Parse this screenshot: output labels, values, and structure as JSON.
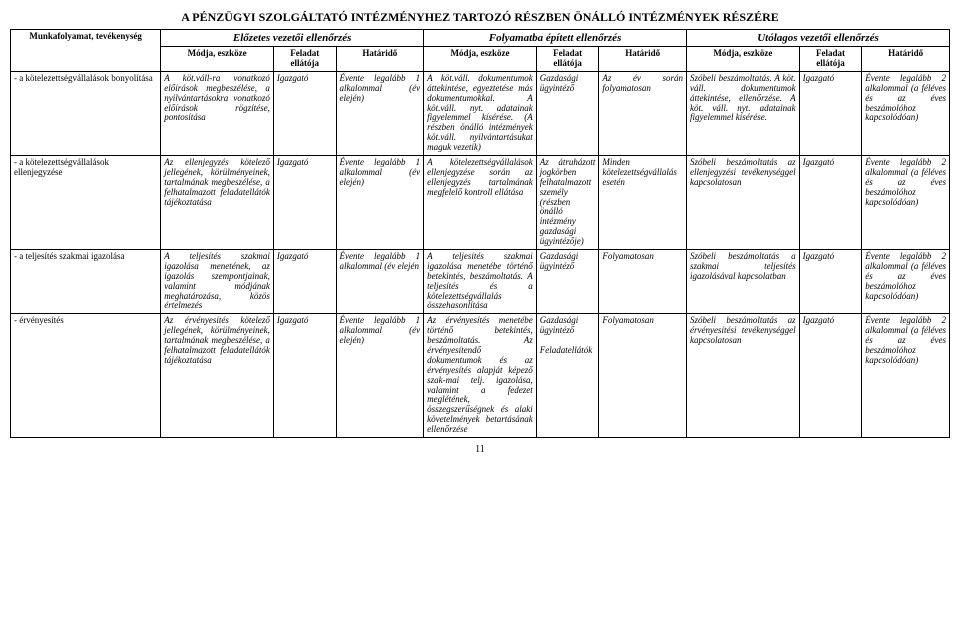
{
  "title": "A PÉNZÜGYI SZOLGÁLTATÓ INTÉZMÉNYHEZ TARTOZÓ RÉSZBEN ÖNÁLLÓ INTÉZMÉNYEK RÉSZÉRE",
  "groupHeaders": {
    "g1": "Előzetes vezetői ellenőrzés",
    "g2": "Folyamatba épített ellenőrzés",
    "g3": "Utólagos vezetői ellenőrzés"
  },
  "colHeaders": {
    "activity": "Munkafolyamat, tevékenység",
    "modja": "Módja, eszköze",
    "feladat": "Feladat ellátója",
    "hatarido": "Határidő"
  },
  "rows": [
    {
      "activity": "- a kötelezettségvállalások bonyolítása",
      "c1m": "A köt.váll-ra vonatkozó előírások megbeszélése, a nyilvántartásokra vonatkozó előírások rögzítése, pontosítása",
      "c1f": "Igazgató",
      "c1h": "Évente legalább 1 alkalommal (év elején)",
      "c2m": "A köt.váll. dokumentumok áttekintése, egyeztetése más dokumentumokkal. A köt.váll. nyt. adatainak figyelemmel kísérése. (A részben önálló intézmények köt.váll. nyilvántartásukat maguk vezetik)",
      "c2f": "Gazdasági ügyintéző",
      "c2h": "Az év során folyamatosan",
      "c3m": "Szóbeli beszámoltatás. A köt. váll. dokumentumok áttekintése, ellenőrzése. A köt. váll. nyt. adatainak figyelemmel kísérése.",
      "c3f": "Igazgató",
      "c3h": "Évente legalább 2 alkalommal (a féléves és az éves beszámolóhoz kapcsolódóan)"
    },
    {
      "activity": "- a kötelezettségvállalások ellenjegyzése",
      "c1m": "Az ellenjegyzés kötelező jellegének, körülményeinek, tartalmának megbeszélése, a felhatalmazott feladatellátók tájékoztatása",
      "c1f": "Igazgató",
      "c1h": "Évente legalább 1 alkalommal (év elején)",
      "c2m": "A kötelezettségvállalások ellenjegyzése során az ellenjegyzés tartalmának megfelelő kontroll ellátása",
      "c2f": "Az átruházott jogkörben felhatalmazott személy (részben önálló intézmény gazdasági ügyintézője)",
      "c2h": "Minden kötelezettségvállalás esetén",
      "c3m": "Szóbeli beszámoltatás az ellenjegyzési tevékenységgel kapcsolatosan",
      "c3f": "Igazgató",
      "c3h": "Évente legalább 2 alkalommal (a féléves és az éves beszámolóhoz kapcsolódóan)"
    },
    {
      "activity": "- a teljesítés szakmai igazolása",
      "c1m": "A teljesítés szakmai igazolása menetének, az igazolás szempontjainak, valamint módjának meghatározása, közös értelmezés",
      "c1f": "Igazgató",
      "c1h": "Évente legalább 1 alkalommal (év elején",
      "c2m": "A teljesítés szakmai igazolása menetébe történő betekintés, beszámoltatás. A teljesítés és a kötelezettségvállalás összehasonlítása",
      "c2f": "Gazdasági ügyintéző",
      "c2h": "Folyamatosan",
      "c3m": "Szóbeli beszámoltatás a szakmai teljesítés igazolásával kapcsolatban",
      "c3f": "Igazgató",
      "c3h": "Évente legalább 2 alkalommal (a féléves és az éves beszámolóhoz kapcsolódóan)"
    },
    {
      "activity": "- érvényesítés",
      "c1m": "Az érvényesítés kötelező jellegének, körülményeinek, tartalmának megbeszélése, a felhatalmazott feladatellátók tájékoztatása",
      "c1f": "Igazgató",
      "c1h": "Évente legalább 1 alkalommal (év elején)",
      "c2m": "Az érvényesítés menetébe történő betekintés, beszámoltatás. Az érvényesítendő dokumentumok és az érvényesítés alapját képező szak-mai telj. igazolása, valamint a fedezet meglétének, összegszerűségnek és alaki követelmények betartásának ellenőrzése",
      "c2f": "Gazdasági ügyintéző\n\nFeladatellátók",
      "c2h": "Folyamatosan",
      "c3m": "Szóbeli beszámoltatás az érvényesítési tevékenységgel kapcsolatosan",
      "c3f": "Igazgató",
      "c3h": "Évente legalább 2 alkalommal (a féléves és az éves beszámolóhoz kapcsolódóan)"
    }
  ],
  "pageNumber": "11"
}
